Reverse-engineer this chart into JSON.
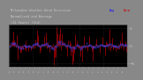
{
  "title_line1": "Milwaukee Weather Wind Direction",
  "title_line2": "Normalized and Average",
  "title_line3": "(24 Hours) (Old)",
  "bg_color": "#888888",
  "plot_bg_color": "#000000",
  "grid_color": "#555555",
  "ylim": [
    -6,
    6
  ],
  "yticks": [
    -5,
    0,
    5
  ],
  "legend_labels": [
    "Avg",
    "Norm"
  ],
  "legend_colors": [
    "#0000ff",
    "#cc0000"
  ],
  "bar_color": "#cc0000",
  "avg_color": "#4444ff",
  "n_points": 144,
  "seed": 42,
  "title_color": "#cccccc",
  "tick_color": "#cccccc",
  "spine_color": "#666666"
}
